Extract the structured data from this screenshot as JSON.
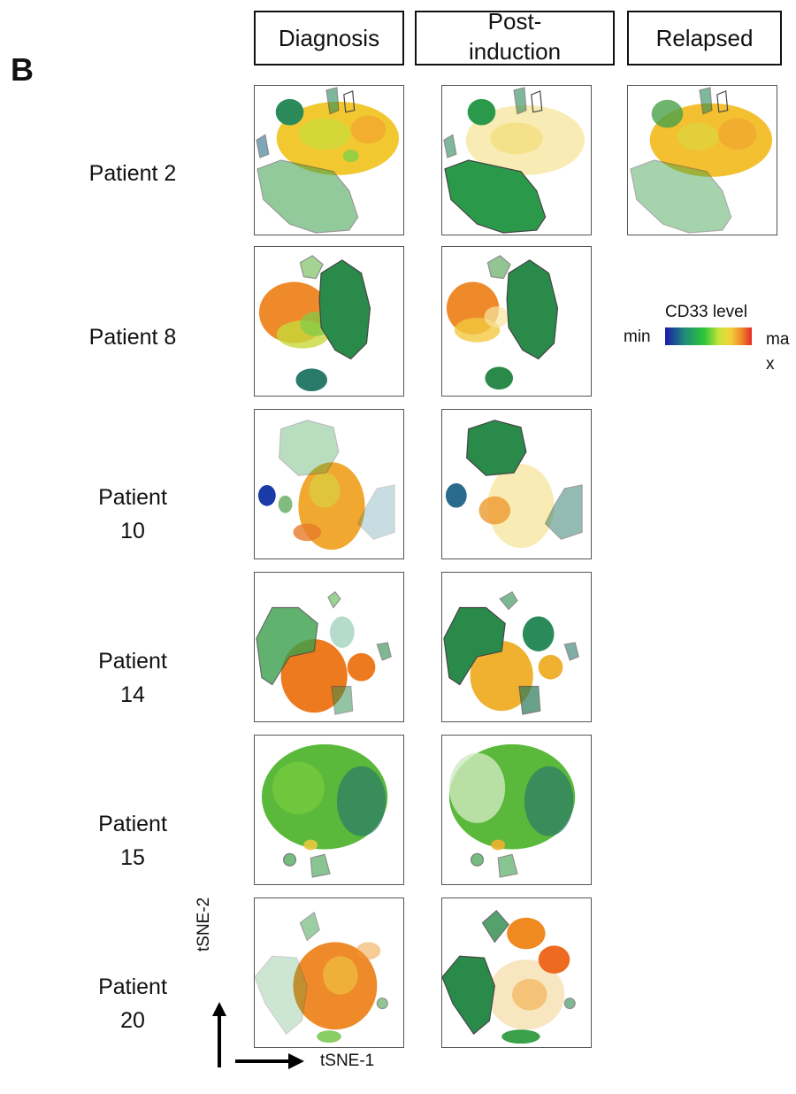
{
  "panel_label": "B",
  "columns": {
    "diagnosis": "Diagnosis",
    "post_induction_line1": "Post-",
    "post_induction_line2": "induction",
    "relapsed": "Relapsed"
  },
  "patients": [
    {
      "label_line1": "Patient 2",
      "label_line2": ""
    },
    {
      "label_line1": "Patient 8",
      "label_line2": ""
    },
    {
      "label_line1": "Patient",
      "label_line2": "10"
    },
    {
      "label_line1": "Patient",
      "label_line2": "14"
    },
    {
      "label_line1": "Patient",
      "label_line2": "15"
    },
    {
      "label_line1": "Patient",
      "label_line2": "20"
    }
  ],
  "legend": {
    "title": "CD33 level",
    "min": "min",
    "max": "max",
    "colors": [
      "#1a1aa8",
      "#1e8a7a",
      "#2cc63a",
      "#c6e43a",
      "#f2d23a",
      "#f08a2a",
      "#e82a2a"
    ]
  },
  "axes": {
    "y_label": "tSNE-2",
    "x_label": "tSNE-1"
  }
}
